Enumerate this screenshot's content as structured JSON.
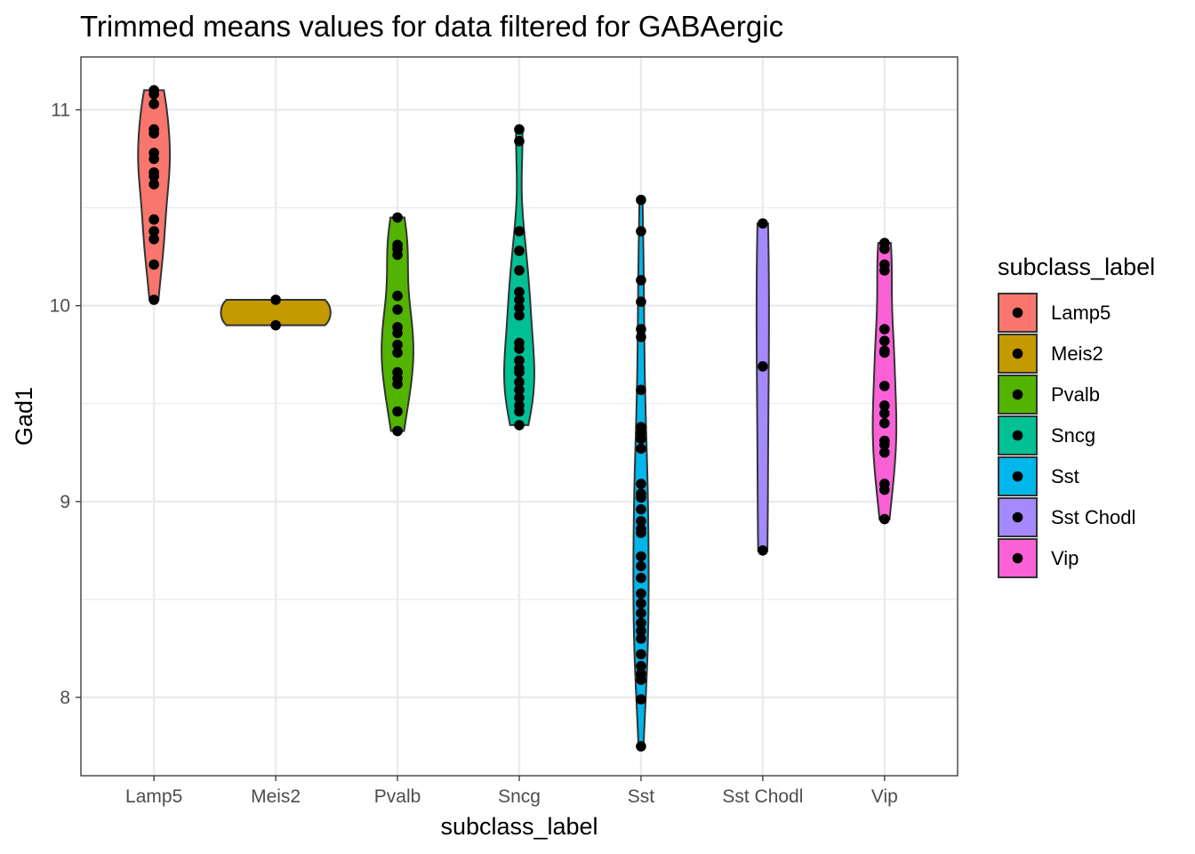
{
  "chart_data": {
    "type": "violin",
    "title": "Trimmed means values for data filtered for GABAergic",
    "xlabel": "subclass_label",
    "ylabel": "Gad1",
    "ylim": [
      7.6,
      11.27
    ],
    "y_ticks": [
      8,
      9,
      10,
      11
    ],
    "y_tick_labels": [
      "8",
      "9",
      "10",
      "11"
    ],
    "grid": true,
    "legend": {
      "title": "subclass_label",
      "placement": "right"
    },
    "categories": [
      "Lamp5",
      "Meis2",
      "Pvalb",
      "Sncg",
      "Sst",
      "Sst Chodl",
      "Vip"
    ],
    "series": [
      {
        "name": "Lamp5",
        "color": "#F8766D",
        "values": [
          11.1,
          11.08,
          11.03,
          10.9,
          10.88,
          10.78,
          10.75,
          10.68,
          10.66,
          10.62,
          10.44,
          10.38,
          10.34,
          10.21,
          10.03
        ]
      },
      {
        "name": "Meis2",
        "color": "#C49A00",
        "values": [
          10.03,
          9.9
        ]
      },
      {
        "name": "Pvalb",
        "color": "#53B400",
        "values": [
          10.45,
          10.31,
          10.29,
          10.26,
          10.05,
          9.98,
          9.89,
          9.86,
          9.8,
          9.76,
          9.66,
          9.63,
          9.6,
          9.46,
          9.36
        ]
      },
      {
        "name": "Sncg",
        "color": "#00C094",
        "values": [
          10.9,
          10.84,
          10.38,
          10.28,
          10.18,
          10.07,
          10.03,
          9.99,
          9.95,
          9.81,
          9.78,
          9.72,
          9.68,
          9.66,
          9.61,
          9.57,
          9.53,
          9.49,
          9.46,
          9.39
        ]
      },
      {
        "name": "Sst",
        "color": "#00B6EB",
        "values": [
          10.54,
          10.38,
          10.13,
          10.02,
          9.88,
          9.84,
          9.57,
          9.38,
          9.35,
          9.32,
          9.27,
          9.09,
          9.04,
          9.02,
          8.96,
          8.9,
          8.86,
          8.84,
          8.72,
          8.67,
          8.61,
          8.53,
          8.48,
          8.43,
          8.38,
          8.34,
          8.3,
          8.22,
          8.16,
          8.12,
          8.09,
          7.99,
          7.75
        ]
      },
      {
        "name": "Sst Chodl",
        "color": "#A58AFF",
        "values": [
          10.42,
          9.69,
          8.75
        ]
      },
      {
        "name": "Vip",
        "color": "#FB61D7",
        "values": [
          10.32,
          10.29,
          10.21,
          10.18,
          9.88,
          9.82,
          9.77,
          9.76,
          9.59,
          9.49,
          9.45,
          9.4,
          9.31,
          9.29,
          9.25,
          9.09,
          9.06,
          8.91
        ]
      }
    ]
  }
}
